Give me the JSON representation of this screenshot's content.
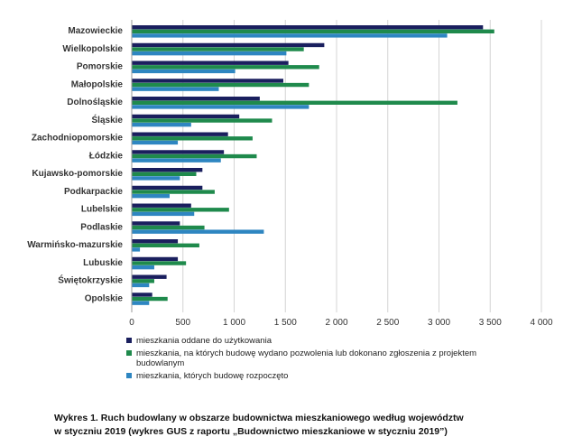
{
  "chart_data": {
    "type": "bar",
    "orientation": "horizontal",
    "categories": [
      "Mazowieckie",
      "Wielkopolskie",
      "Pomorskie",
      "Małopolskie",
      "Dolnośląskie",
      "Śląskie",
      "Zachodniopomorskie",
      "Łódzkie",
      "Kujawsko-pomorskie",
      "Podkarpackie",
      "Lubelskie",
      "Podlaskie",
      "Warmińsko-mazurskie",
      "Lubuskie",
      "Świętokrzyskie",
      "Opolskie"
    ],
    "series": [
      {
        "name": "mieszkania oddane do użytkowania",
        "color": "#1a1f5e",
        "values": [
          3430,
          1880,
          1530,
          1480,
          1250,
          1050,
          940,
          900,
          690,
          690,
          580,
          470,
          450,
          450,
          340,
          200
        ]
      },
      {
        "name": "mieszkania, na których budowę wydano pozwolenia lub dokonano zgłoszenia z projektem budowlanym",
        "color": "#1f8a4c",
        "values": [
          3540,
          1680,
          1830,
          1730,
          3180,
          1370,
          1180,
          1220,
          630,
          810,
          950,
          710,
          660,
          530,
          220,
          350
        ]
      },
      {
        "name": "mieszkania, których budowę rozpoczęto",
        "color": "#2e86c1",
        "values": [
          3080,
          1510,
          1010,
          850,
          1730,
          580,
          450,
          870,
          470,
          370,
          610,
          1290,
          80,
          220,
          170,
          170
        ]
      }
    ],
    "xlim": [
      0,
      4000
    ],
    "xticks": [
      "0",
      "500",
      "1 000",
      "1 500",
      "2 000",
      "2 500",
      "3 000",
      "3 500",
      "4 000"
    ],
    "grid": true,
    "legend_position": "bottom"
  },
  "legend": {
    "item1": "mieszkania oddane do użytkowania",
    "item2": "mieszkania, na których budowę wydano pozwolenia lub dokonano zgłoszenia z projektem budowlanym",
    "item3": "mieszkania, których budowę rozpoczęto"
  },
  "caption": {
    "line1": "Wykres 1. Ruch budowlany w obszarze budownictwa mieszkaniowego według województw",
    "line2": "w styczniu 2019 (wykres GUS z raportu „Budownictwo mieszkaniowe w styczniu 2019”)"
  }
}
